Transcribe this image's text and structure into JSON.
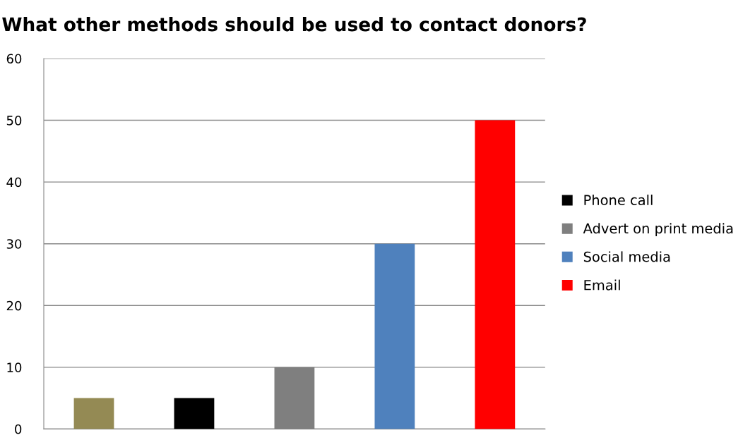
{
  "chart_data": {
    "type": "bar",
    "title": "What other methods should be used to contact donors?",
    "categories": [
      null,
      null,
      null,
      null,
      null
    ],
    "series": [
      {
        "color": "#948a54",
        "values": [
          5,
          null,
          null,
          null,
          null
        ]
      },
      {
        "name": "Phone call",
        "color": "#000000",
        "values": [
          null,
          5,
          null,
          null,
          null
        ]
      },
      {
        "name": "Advert on print media",
        "color": "#7f7f7f",
        "values": [
          null,
          null,
          10,
          null,
          null
        ]
      },
      {
        "name": "Social media",
        "color": "#4f81bd",
        "values": [
          null,
          null,
          null,
          30,
          null
        ]
      },
      {
        "name": "Email",
        "color": "#ff0000",
        "values": [
          null,
          null,
          null,
          null,
          50
        ]
      }
    ],
    "ylim": [
      0,
      60
    ],
    "yticks": [
      0,
      10,
      20,
      30,
      40,
      50,
      60
    ],
    "grid": "y",
    "legend": "right"
  }
}
